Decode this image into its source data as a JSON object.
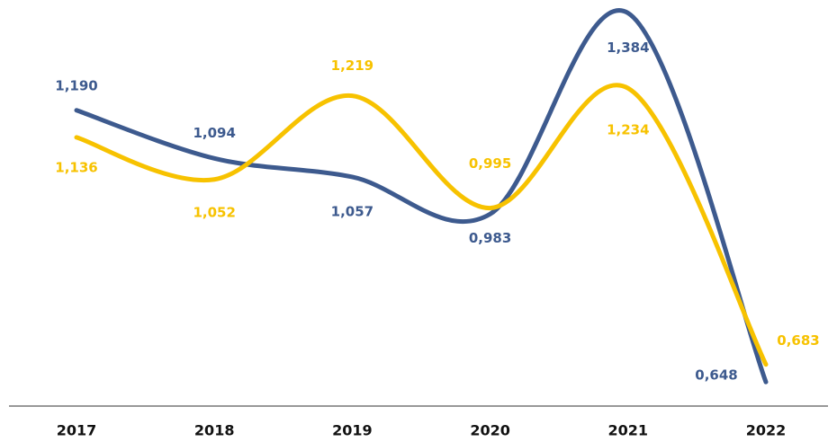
{
  "chart_data": {
    "type": "line",
    "categories": [
      "2017",
      "2018",
      "2019",
      "2020",
      "2021",
      "2022"
    ],
    "series": [
      {
        "color": "#3d5a8e",
        "values": [
          1.19,
          1.094,
          1.057,
          0.983,
          1.384,
          0.648
        ],
        "value_labels": [
          "1,190",
          "1,094",
          "1,057",
          "0,983",
          "1,384",
          "0,648"
        ]
      },
      {
        "color": "#f7c200",
        "values": [
          1.136,
          1.052,
          1.219,
          0.995,
          1.234,
          0.683
        ],
        "value_labels": [
          "1,136",
          "1,052",
          "1,219",
          "0,995",
          "1,234",
          "0,683"
        ]
      }
    ],
    "ylim": [
      0.6,
      1.41
    ],
    "grid": false
  }
}
